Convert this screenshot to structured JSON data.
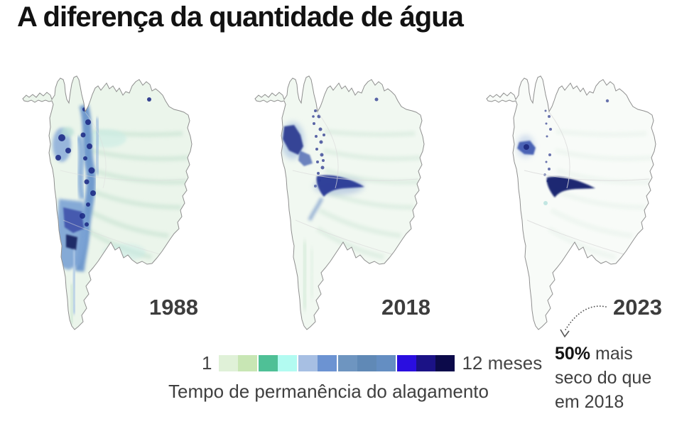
{
  "title": "A diferença da quantidade de água",
  "maps": [
    {
      "year": "1988"
    },
    {
      "year": "2018"
    },
    {
      "year": "2023"
    }
  ],
  "legend": {
    "min_label": "1",
    "max_label": "12 meses",
    "caption": "Tempo de permanência do alagamento",
    "colors": [
      "#e0f1d8",
      "#c8e6b4",
      "#4fc096",
      "#b2fbf1",
      "#a7bfe3",
      "#6c93d2",
      "#6e95c0",
      "#6089b6",
      "#648ec2",
      "#2a0ee0",
      "#1b1286",
      "#0c0a4a"
    ],
    "groups": [
      2,
      2,
      2,
      3,
      3
    ]
  },
  "annotation": {
    "highlight": "50%",
    "text": "mais seco do que em 2018"
  },
  "chart_data": {
    "type": "heatmap",
    "title": "A diferença da quantidade de água",
    "categories": [
      "1988",
      "2018",
      "2023"
    ],
    "series": [
      {
        "name": "1988",
        "description": "Alagamento extenso: faixa azul intensa no oeste e grande mancha azul no sudoeste do Pantanal; interior coberto por alagamento curto (verde claro)"
      },
      {
        "name": "2018",
        "description": "Alagamento reduzido: mancha azul escura no noroeste e pluma central-oeste em forma de seta; interior verde muito claro"
      },
      {
        "name": "2023",
        "description": "Alagamento mínimo: pequena mancha azul no noroeste e pluma azul-marinho central-oeste; interior quase branco; 50% mais seco do que em 2018"
      }
    ],
    "scale": {
      "label": "Tempo de permanência do alagamento",
      "min": 1,
      "max": 12,
      "unit": "meses",
      "colors": [
        "#e0f1d8",
        "#c8e6b4",
        "#4fc096",
        "#b2fbf1",
        "#a7bfe3",
        "#6c93d2",
        "#6e95c0",
        "#6089b6",
        "#648ec2",
        "#2a0ee0",
        "#1b1286",
        "#0c0a4a"
      ]
    },
    "legend_position": "bottom",
    "grid": false
  }
}
